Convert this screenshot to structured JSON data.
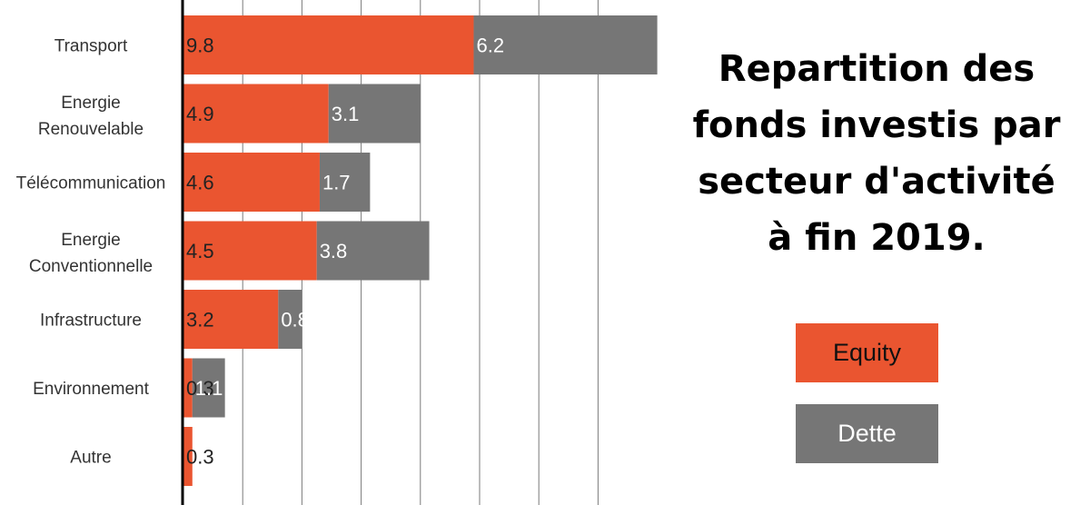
{
  "title_lines": [
    "Repartition des",
    "fonds investis par",
    "secteur d'activité",
    "à fin 2019."
  ],
  "colors": {
    "equity": "#EA5530",
    "dette": "#767676",
    "grid": "#7a7a7a",
    "axis": "#000000",
    "equity_text": "#222222",
    "dette_text": "#ffffff"
  },
  "legend": {
    "equity": "Equity",
    "dette": "Dette",
    "position": "right"
  },
  "chart_data": {
    "type": "bar",
    "orientation": "horizontal",
    "stacked": true,
    "categories": [
      [
        "Transport"
      ],
      [
        "Energie",
        "Renouvelable"
      ],
      [
        "Télécommunication"
      ],
      [
        "Energie",
        "Conventionnelle"
      ],
      [
        "Infrastructure"
      ],
      [
        "Environnement"
      ],
      [
        "Autre"
      ]
    ],
    "series": [
      {
        "name": "Equity",
        "values": [
          9.8,
          4.9,
          4.6,
          4.5,
          3.2,
          0.3,
          0.3
        ],
        "labels": [
          "9.8",
          "4.9",
          "4.6",
          "4.5",
          "3.2",
          "0.3",
          "0.3"
        ]
      },
      {
        "name": "Dette",
        "values": [
          6.2,
          3.1,
          1.7,
          3.8,
          0.8,
          1.1,
          null
        ],
        "labels": [
          "6.2",
          "3.1",
          "1.7",
          "3.8",
          "0.8",
          "1.1",
          ""
        ]
      }
    ],
    "xlim": [
      0,
      15.5
    ],
    "grid": true
  }
}
